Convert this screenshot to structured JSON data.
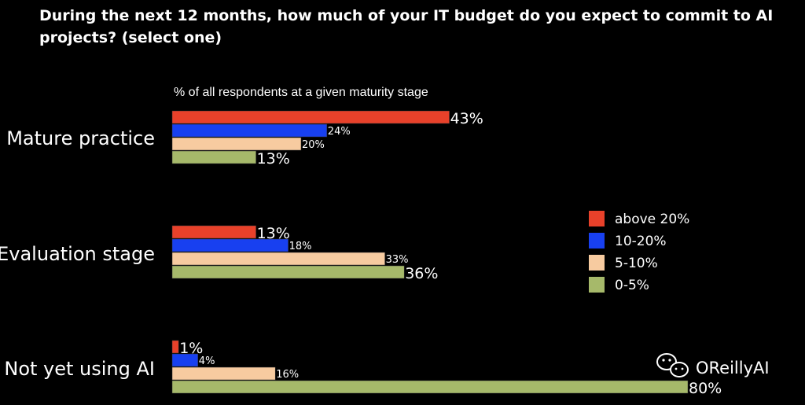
{
  "chart_data": {
    "type": "bar",
    "orientation": "horizontal",
    "title": "During the next 12 months, how much of your IT budget do you expect to commit to AI projects? (select one)",
    "subtitle": "% of all respondents at a given maturity stage",
    "categories": [
      "Mature practice",
      "Evaluation stage",
      "Not yet using AI"
    ],
    "series": [
      {
        "name": "above 20%",
        "color": "#e8412a",
        "values": [
          43,
          13,
          1
        ]
      },
      {
        "name": "10-20%",
        "color": "#1840f0",
        "values": [
          24,
          18,
          4
        ]
      },
      {
        "name": "5-10%",
        "color": "#f7cba0",
        "values": [
          20,
          33,
          16
        ]
      },
      {
        "name": "0-5%",
        "color": "#a6b96a",
        "values": [
          13,
          36,
          80
        ]
      }
    ],
    "value_labels": [
      [
        "43%",
        "13%",
        "1%"
      ],
      [
        "24%",
        "18%",
        "4%"
      ],
      [
        "20%",
        "33%",
        "16%"
      ],
      [
        "13%",
        "36%",
        "80%"
      ]
    ],
    "xlim": [
      0,
      80
    ],
    "legend_position": "right",
    "grid": false
  },
  "watermark": {
    "text": "OReillyAI",
    "icon": "wechat-icon"
  }
}
